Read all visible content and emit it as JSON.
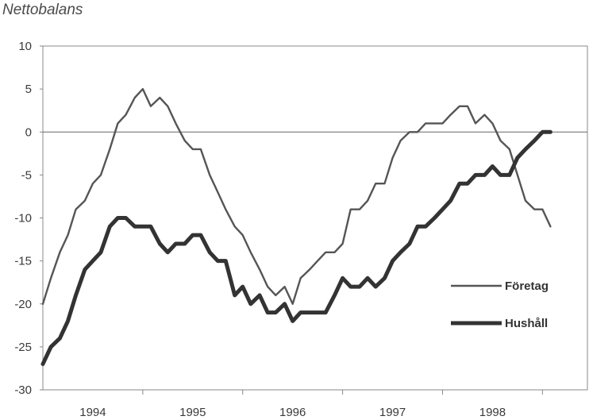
{
  "chart_data": {
    "type": "line",
    "ylabel": "Nettobalans",
    "ylim": [
      -30,
      10
    ],
    "yticks": [
      10,
      5,
      0,
      -5,
      -10,
      -15,
      -20,
      -25,
      -30
    ],
    "xlim": [
      1993.5,
      1998.95
    ],
    "year_labels": [
      {
        "label": "1994",
        "x": 1994.0
      },
      {
        "label": "1995",
        "x": 1995.0
      },
      {
        "label": "1996",
        "x": 1996.0
      },
      {
        "label": "1997",
        "x": 1997.0
      },
      {
        "label": "1998",
        "x": 1998.0
      }
    ],
    "year_dividers": [
      1994.5,
      1995.5,
      1996.5,
      1997.5,
      1998.5
    ],
    "zero_line": 0,
    "legend_placement": "right",
    "colors": {
      "foretag": "#555555",
      "hushall": "#333333",
      "axis": "#666666",
      "frame": "#888888"
    },
    "series": [
      {
        "name": "Företag",
        "key": "foretag",
        "points": [
          [
            1993.5,
            -20
          ],
          [
            1993.58,
            -17
          ],
          [
            1993.67,
            -14
          ],
          [
            1993.75,
            -12
          ],
          [
            1993.83,
            -9
          ],
          [
            1993.92,
            -8
          ],
          [
            1994.0,
            -6
          ],
          [
            1994.08,
            -5
          ],
          [
            1994.17,
            -2
          ],
          [
            1994.25,
            1
          ],
          [
            1994.33,
            2
          ],
          [
            1994.42,
            4
          ],
          [
            1994.5,
            5
          ],
          [
            1994.58,
            3
          ],
          [
            1994.67,
            4
          ],
          [
            1994.75,
            3
          ],
          [
            1994.83,
            1
          ],
          [
            1994.92,
            -1
          ],
          [
            1995.0,
            -2
          ],
          [
            1995.08,
            -2
          ],
          [
            1995.17,
            -5
          ],
          [
            1995.25,
            -7
          ],
          [
            1995.33,
            -9
          ],
          [
            1995.42,
            -11
          ],
          [
            1995.5,
            -12
          ],
          [
            1995.58,
            -14
          ],
          [
            1995.67,
            -16
          ],
          [
            1995.75,
            -18
          ],
          [
            1995.83,
            -19
          ],
          [
            1995.92,
            -18
          ],
          [
            1996.0,
            -20
          ],
          [
            1996.08,
            -17
          ],
          [
            1996.17,
            -16
          ],
          [
            1996.25,
            -15
          ],
          [
            1996.33,
            -14
          ],
          [
            1996.42,
            -14
          ],
          [
            1996.5,
            -13
          ],
          [
            1996.58,
            -9
          ],
          [
            1996.67,
            -9
          ],
          [
            1996.75,
            -8
          ],
          [
            1996.83,
            -6
          ],
          [
            1996.92,
            -6
          ],
          [
            1997.0,
            -3
          ],
          [
            1997.08,
            -1
          ],
          [
            1997.17,
            0
          ],
          [
            1997.25,
            0
          ],
          [
            1997.33,
            1
          ],
          [
            1997.42,
            1
          ],
          [
            1997.5,
            1
          ],
          [
            1997.58,
            2
          ],
          [
            1997.67,
            3
          ],
          [
            1997.75,
            3
          ],
          [
            1997.83,
            1
          ],
          [
            1997.92,
            2
          ],
          [
            1998.0,
            1
          ],
          [
            1998.08,
            -1
          ],
          [
            1998.17,
            -2
          ],
          [
            1998.25,
            -5
          ],
          [
            1998.33,
            -8
          ],
          [
            1998.42,
            -9
          ],
          [
            1998.5,
            -9
          ],
          [
            1998.58,
            -11
          ]
        ]
      },
      {
        "name": "Hushåll",
        "key": "hushall",
        "points": [
          [
            1993.5,
            -27
          ],
          [
            1993.58,
            -25
          ],
          [
            1993.67,
            -24
          ],
          [
            1993.75,
            -22
          ],
          [
            1993.83,
            -19
          ],
          [
            1993.92,
            -16
          ],
          [
            1994.0,
            -15
          ],
          [
            1994.08,
            -14
          ],
          [
            1994.17,
            -11
          ],
          [
            1994.25,
            -10
          ],
          [
            1994.33,
            -10
          ],
          [
            1994.42,
            -11
          ],
          [
            1994.5,
            -11
          ],
          [
            1994.58,
            -11
          ],
          [
            1994.67,
            -13
          ],
          [
            1994.75,
            -14
          ],
          [
            1994.83,
            -13
          ],
          [
            1994.92,
            -13
          ],
          [
            1995.0,
            -12
          ],
          [
            1995.08,
            -12
          ],
          [
            1995.17,
            -14
          ],
          [
            1995.25,
            -15
          ],
          [
            1995.33,
            -15
          ],
          [
            1995.42,
            -19
          ],
          [
            1995.5,
            -18
          ],
          [
            1995.58,
            -20
          ],
          [
            1995.67,
            -19
          ],
          [
            1995.75,
            -21
          ],
          [
            1995.83,
            -21
          ],
          [
            1995.92,
            -20
          ],
          [
            1996.0,
            -22
          ],
          [
            1996.08,
            -21
          ],
          [
            1996.17,
            -21
          ],
          [
            1996.25,
            -21
          ],
          [
            1996.33,
            -21
          ],
          [
            1996.42,
            -19
          ],
          [
            1996.5,
            -17
          ],
          [
            1996.58,
            -18
          ],
          [
            1996.67,
            -18
          ],
          [
            1996.75,
            -17
          ],
          [
            1996.83,
            -18
          ],
          [
            1996.92,
            -17
          ],
          [
            1997.0,
            -15
          ],
          [
            1997.08,
            -14
          ],
          [
            1997.17,
            -13
          ],
          [
            1997.25,
            -11
          ],
          [
            1997.33,
            -11
          ],
          [
            1997.42,
            -10
          ],
          [
            1997.5,
            -9
          ],
          [
            1997.58,
            -8
          ],
          [
            1997.67,
            -6
          ],
          [
            1997.75,
            -6
          ],
          [
            1997.83,
            -5
          ],
          [
            1997.92,
            -5
          ],
          [
            1998.0,
            -4
          ],
          [
            1998.08,
            -5
          ],
          [
            1998.17,
            -5
          ],
          [
            1998.25,
            -3
          ],
          [
            1998.33,
            -2
          ],
          [
            1998.42,
            -1
          ],
          [
            1998.5,
            0
          ],
          [
            1998.58,
            0
          ]
        ]
      }
    ]
  }
}
